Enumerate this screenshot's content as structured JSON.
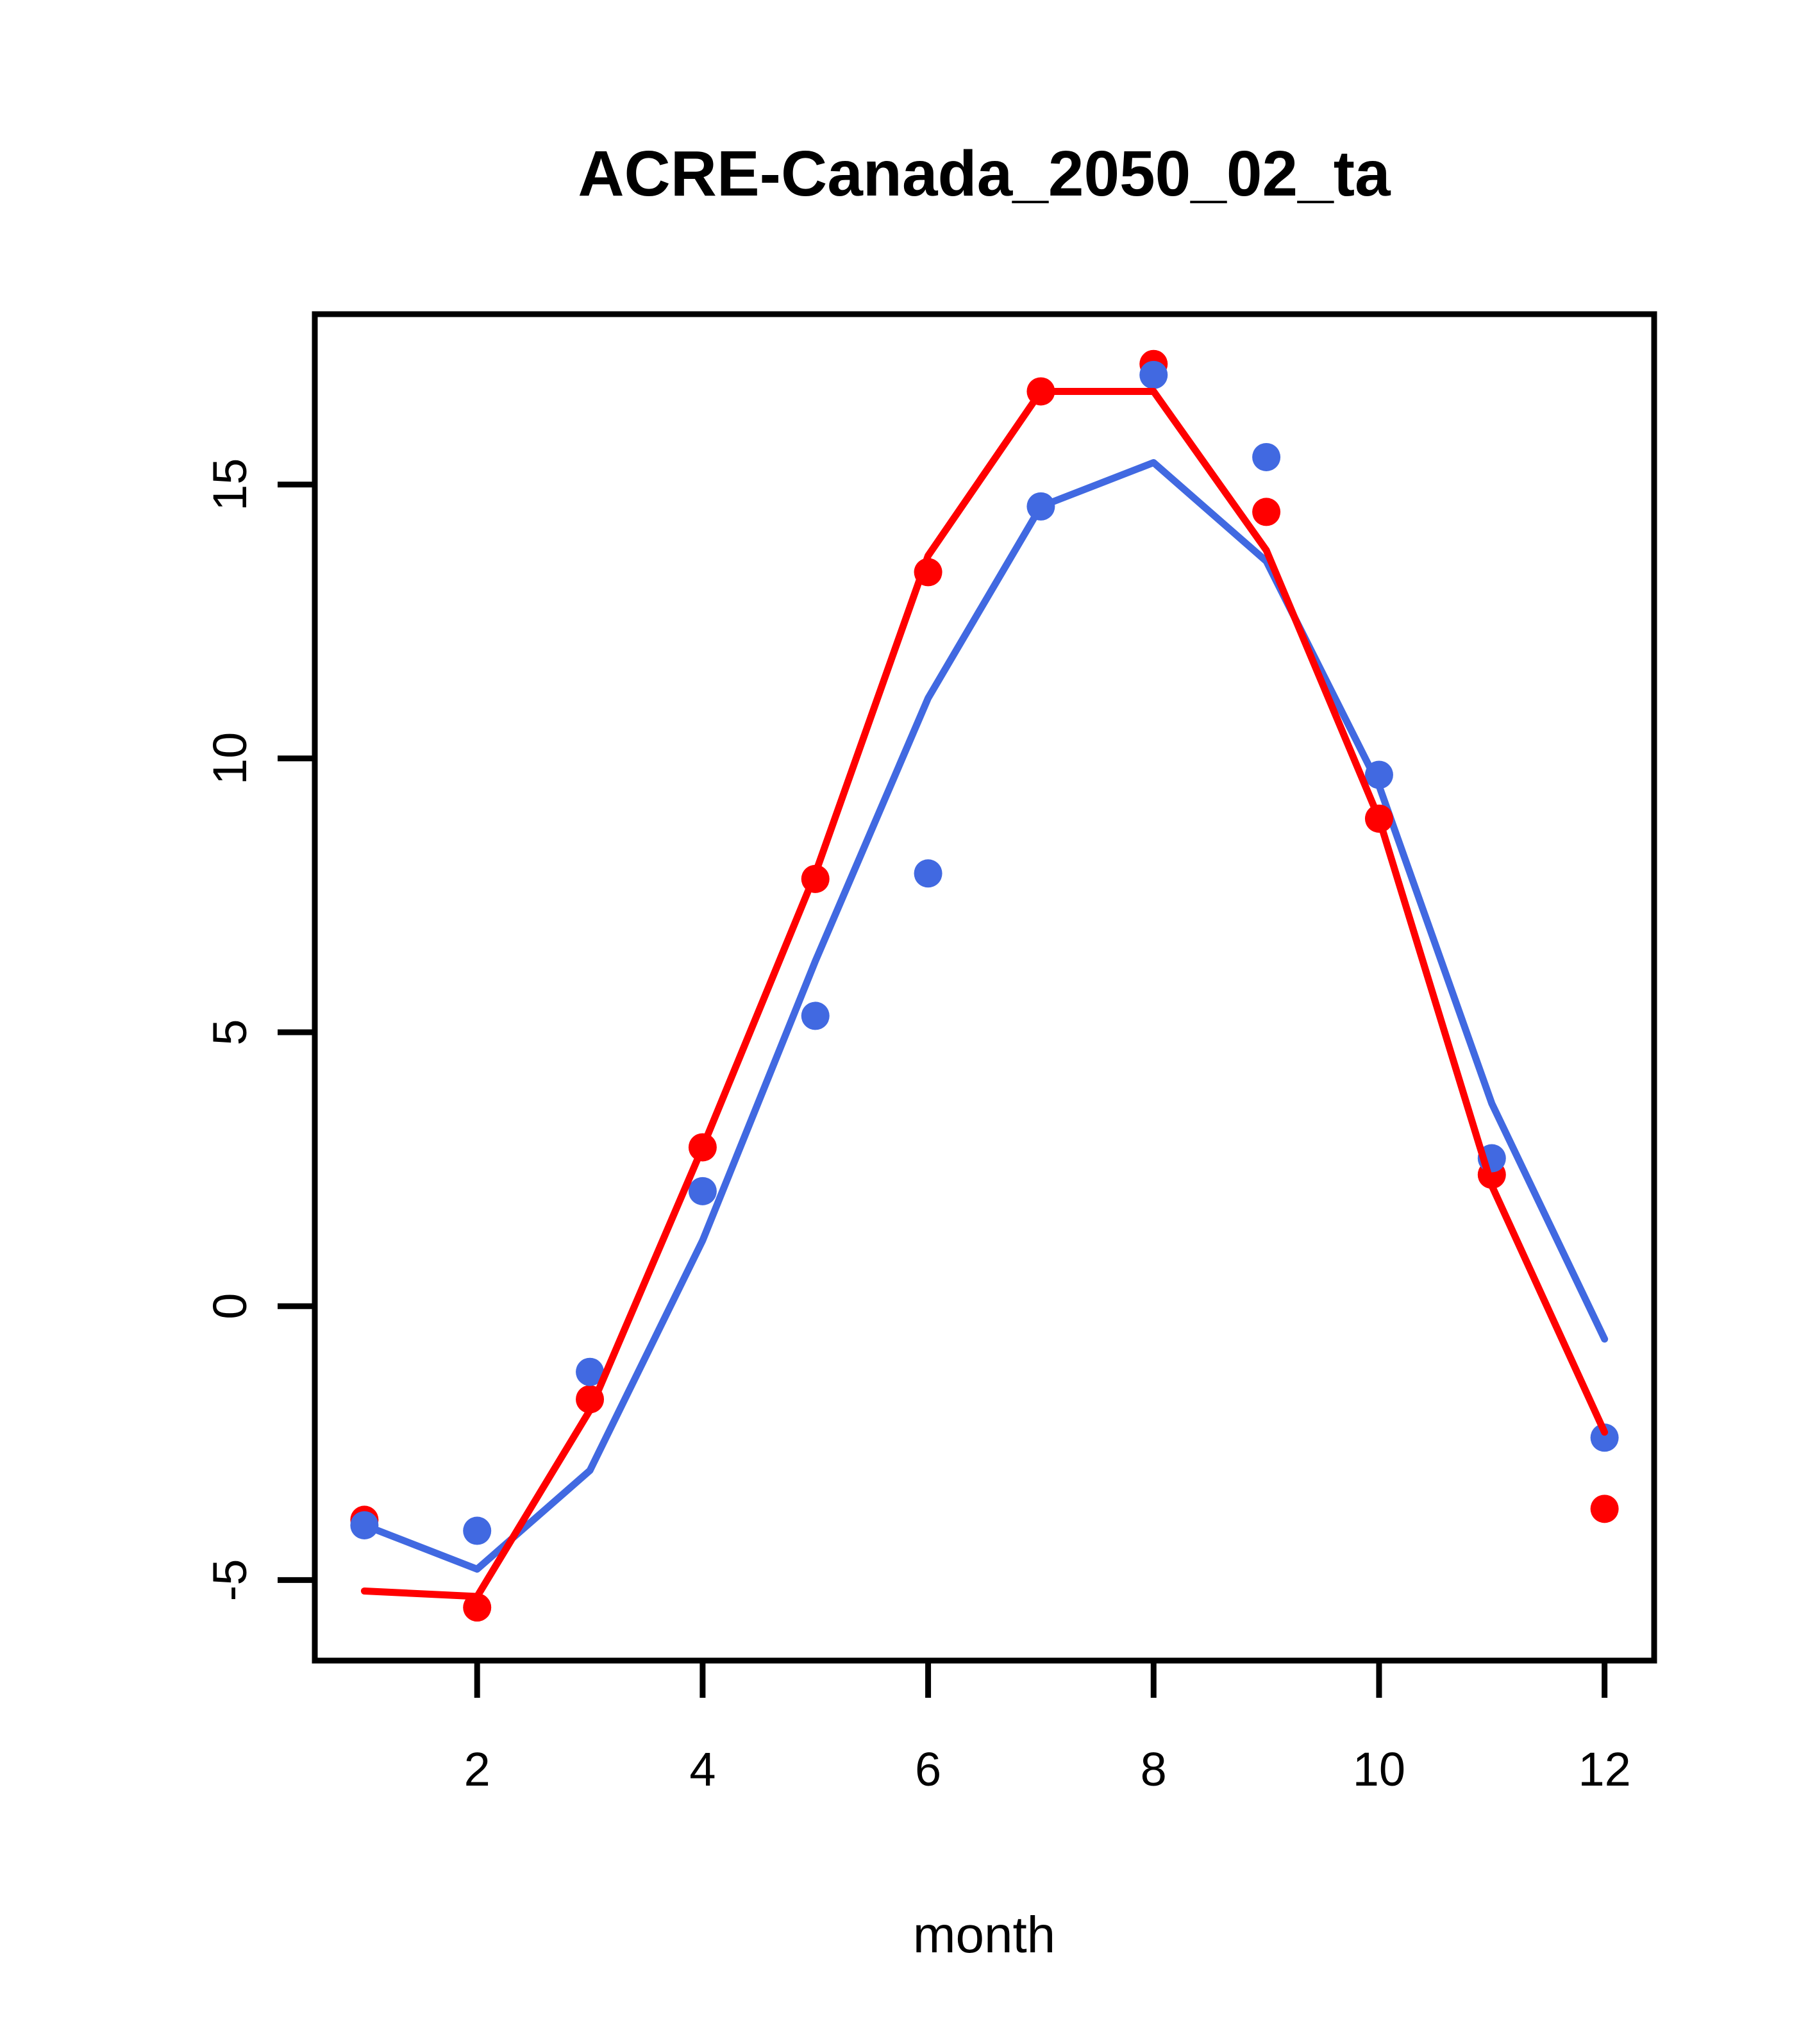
{
  "title": "ACRE-Canada_2050_02_ta",
  "colors": {
    "red": "#ff0000",
    "blue": "#4169e1",
    "axis": "#000000",
    "background": "#ffffff"
  },
  "axes": {
    "x": {
      "label": "month",
      "tick_values": [
        2,
        4,
        6,
        8,
        10,
        12
      ],
      "tick_labels": [
        "2",
        "4",
        "6",
        "8",
        "10",
        "12"
      ]
    },
    "y": {
      "label": "",
      "tick_values": [
        -5,
        0,
        5,
        10,
        15
      ],
      "tick_labels": [
        "-5",
        "0",
        "5",
        "10",
        "15"
      ]
    }
  },
  "chart_data": {
    "type": "line+scatter",
    "title": "ACRE-Canada_2050_02_ta",
    "xlabel": "month",
    "ylabel": "",
    "x": [
      1,
      2,
      3,
      4,
      5,
      6,
      7,
      8,
      9,
      10,
      11,
      12
    ],
    "xlim": [
      0.56,
      12.44
    ],
    "ylim": [
      -6.47,
      18.11
    ],
    "grid": false,
    "legend": "none",
    "series": [
      {
        "name": "blue line",
        "style": "line",
        "color": "blue",
        "values": [
          -4.0,
          -4.8,
          -3.0,
          1.2,
          6.3,
          11.1,
          14.6,
          15.4,
          13.6,
          9.5,
          3.7,
          -0.6
        ]
      },
      {
        "name": "red points",
        "style": "scatter",
        "color": "red",
        "values": [
          -3.9,
          -5.5,
          -1.7,
          2.9,
          7.8,
          13.4,
          16.7,
          17.2,
          14.5,
          8.9,
          2.4,
          -3.7
        ]
      },
      {
        "name": "blue points",
        "style": "scatter",
        "color": "blue",
        "values": [
          -4.0,
          -4.1,
          -1.2,
          2.1,
          5.3,
          7.9,
          14.6,
          17.0,
          15.5,
          9.7,
          2.7,
          -2.4
        ]
      },
      {
        "name": "red line",
        "style": "line",
        "color": "red",
        "values": [
          -5.2,
          -5.3,
          -1.9,
          2.9,
          7.9,
          13.7,
          16.7,
          16.7,
          13.8,
          8.9,
          2.2,
          -2.3
        ]
      }
    ]
  }
}
